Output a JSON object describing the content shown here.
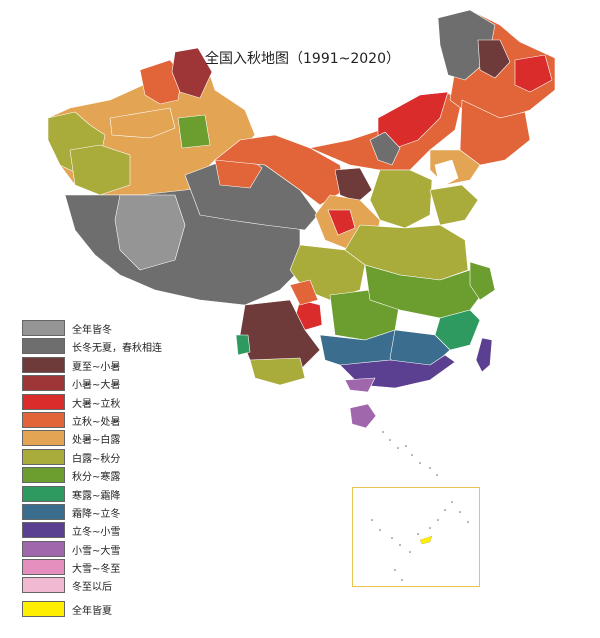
{
  "map": {
    "title": "全国入秋地图（1991~2020）"
  },
  "legend": {
    "items": [
      {
        "label": "全年皆冬",
        "color": "#959595"
      },
      {
        "label": "长冬无夏，春秋相连",
        "color": "#6e6e6e"
      },
      {
        "label": "夏至~小暑",
        "color": "#6e3a3a"
      },
      {
        "label": "小暑~大暑",
        "color": "#9e3536"
      },
      {
        "label": "大暑~立秋",
        "color": "#da2c2a"
      },
      {
        "label": "立秋~处暑",
        "color": "#e2653a"
      },
      {
        "label": "处暑~白露",
        "color": "#e3a453"
      },
      {
        "label": "白露~秋分",
        "color": "#a9ab3a"
      },
      {
        "label": "秋分~寒露",
        "color": "#6c9e2f"
      },
      {
        "label": "寒露~霜降",
        "color": "#2f9a60"
      },
      {
        "label": "霜降~立冬",
        "color": "#3b6e8e"
      },
      {
        "label": "立冬~小雪",
        "color": "#5b3f90"
      },
      {
        "label": "小雪~大雪",
        "color": "#a067ad"
      },
      {
        "label": "大雪~冬至",
        "color": "#e58fbf"
      },
      {
        "label": "冬至以后",
        "color": "#f2b9d2"
      },
      {
        "label": "全年皆夏",
        "color": "#ffee00"
      }
    ]
  }
}
